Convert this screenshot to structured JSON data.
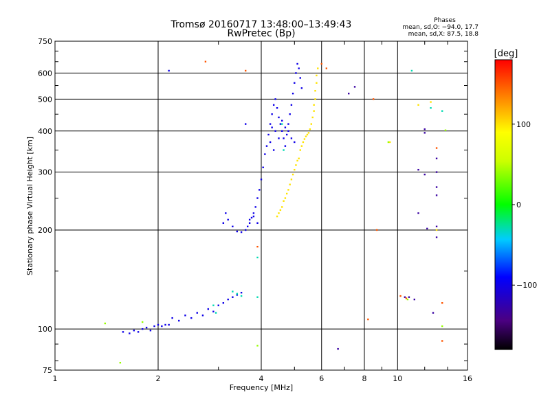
{
  "chart_data": {
    "type": "scatter",
    "title": "Tromsø 20160717 13:48:00–13:49:43",
    "subtitle": "RwPretec (Bp)",
    "xlabel": "Frequency [MHz]",
    "ylabel": "Stationary phase Virtual Height [km]",
    "x_scale": "log",
    "y_scale": "log",
    "xlim": [
      1,
      16
    ],
    "ylim": [
      75,
      750
    ],
    "x_ticks": [
      1,
      2,
      4,
      6,
      8,
      10,
      16
    ],
    "x_tick_labels": [
      "1",
      "2",
      "4",
      "6",
      "8",
      "10",
      "16"
    ],
    "y_ticks": [
      75,
      100,
      200,
      300,
      400,
      500,
      600,
      750
    ],
    "y_tick_labels": [
      "75",
      "100",
      "200",
      "300",
      "400",
      "500",
      "600",
      "750"
    ],
    "grid": true,
    "stats": {
      "header": "Phases",
      "o_line": "mean, sd,O: −94.0, 17.7",
      "x_line": "mean, sd,X:  87.5, 18.8"
    },
    "colorbar": {
      "label": "[deg]",
      "range": [
        -180,
        180
      ],
      "ticks": [
        100,
        0,
        -100
      ],
      "tick_labels": [
        "100",
        "0",
        "−100"
      ]
    },
    "series": [
      {
        "color_value": -100,
        "points": [
          [
            1.58,
            98
          ],
          [
            1.65,
            97
          ],
          [
            1.7,
            99
          ],
          [
            1.75,
            98
          ],
          [
            1.8,
            100
          ],
          [
            1.85,
            101
          ],
          [
            1.9,
            99
          ],
          [
            1.95,
            102
          ],
          [
            2.0,
            103
          ],
          [
            2.05,
            102
          ],
          [
            2.1,
            103
          ],
          [
            2.15,
            103
          ],
          [
            2.2,
            108
          ],
          [
            2.3,
            106
          ],
          [
            2.4,
            110
          ],
          [
            2.5,
            108
          ],
          [
            2.6,
            112
          ],
          [
            2.7,
            110
          ],
          [
            2.8,
            115
          ],
          [
            2.9,
            113
          ],
          [
            3.0,
            118
          ],
          [
            3.1,
            120
          ],
          [
            3.2,
            123
          ],
          [
            3.3,
            125
          ],
          [
            3.4,
            127
          ],
          [
            3.5,
            129
          ],
          [
            3.1,
            210
          ],
          [
            3.15,
            225
          ],
          [
            3.2,
            215
          ],
          [
            3.3,
            205
          ],
          [
            3.4,
            198
          ],
          [
            3.5,
            197
          ],
          [
            3.6,
            200
          ],
          [
            3.65,
            205
          ],
          [
            3.7,
            210
          ],
          [
            3.75,
            218
          ],
          [
            3.8,
            225
          ],
          [
            3.85,
            235
          ],
          [
            3.9,
            250
          ],
          [
            3.95,
            265
          ],
          [
            4.0,
            285
          ],
          [
            4.05,
            310
          ],
          [
            4.1,
            340
          ],
          [
            4.15,
            360
          ],
          [
            4.2,
            390
          ],
          [
            4.25,
            420
          ],
          [
            4.3,
            450
          ],
          [
            4.35,
            480
          ],
          [
            4.4,
            500
          ],
          [
            4.45,
            470
          ],
          [
            4.5,
            440
          ],
          [
            4.55,
            420
          ],
          [
            4.6,
            400
          ],
          [
            4.65,
            380
          ],
          [
            4.7,
            360
          ],
          [
            4.75,
            390
          ],
          [
            4.8,
            420
          ],
          [
            4.85,
            450
          ],
          [
            4.9,
            480
          ],
          [
            4.95,
            520
          ],
          [
            5.0,
            560
          ],
          [
            5.05,
            600
          ],
          [
            5.1,
            640
          ],
          [
            5.15,
            620
          ],
          [
            5.2,
            580
          ],
          [
            5.25,
            540
          ],
          [
            4.6,
            430
          ],
          [
            4.7,
            410
          ],
          [
            4.8,
            400
          ],
          [
            4.9,
            380
          ],
          [
            5.0,
            370
          ],
          [
            4.5,
            380
          ],
          [
            4.4,
            400
          ],
          [
            4.3,
            410
          ],
          [
            4.25,
            370
          ],
          [
            4.35,
            350
          ],
          [
            3.6,
            420
          ],
          [
            2.15,
            610
          ],
          [
            3.9,
            210
          ],
          [
            3.7,
            215
          ],
          [
            3.8,
            220
          ]
        ]
      },
      {
        "color_value": 100,
        "points": [
          [
            4.45,
            220
          ],
          [
            4.5,
            225
          ],
          [
            4.6,
            235
          ],
          [
            4.7,
            250
          ],
          [
            4.8,
            265
          ],
          [
            4.9,
            285
          ],
          [
            5.0,
            305
          ],
          [
            5.1,
            325
          ],
          [
            5.2,
            350
          ],
          [
            5.3,
            370
          ],
          [
            5.4,
            385
          ],
          [
            5.5,
            395
          ],
          [
            5.6,
            420
          ],
          [
            5.7,
            460
          ],
          [
            5.75,
            500
          ],
          [
            5.8,
            560
          ],
          [
            5.85,
            620
          ],
          [
            4.55,
            230
          ],
          [
            4.65,
            245
          ],
          [
            4.75,
            258
          ],
          [
            4.85,
            275
          ],
          [
            4.95,
            295
          ],
          [
            5.05,
            315
          ],
          [
            5.15,
            330
          ],
          [
            5.25,
            360
          ],
          [
            5.35,
            378
          ],
          [
            5.45,
            390
          ],
          [
            5.55,
            405
          ],
          [
            5.65,
            440
          ],
          [
            5.7,
            480
          ],
          [
            5.75,
            530
          ],
          [
            5.8,
            590
          ],
          [
            9.5,
            370
          ],
          [
            11.5,
            480
          ],
          [
            12.5,
            490
          ],
          [
            13.0,
            200
          ]
        ]
      },
      {
        "color_value": -30,
        "points": [
          [
            3.3,
            130
          ],
          [
            3.4,
            128
          ],
          [
            3.5,
            126
          ],
          [
            2.9,
            118
          ],
          [
            2.95,
            112
          ],
          [
            3.9,
            125
          ],
          [
            3.9,
            165
          ],
          [
            4.6,
            420
          ],
          [
            4.65,
            350
          ],
          [
            11.0,
            610
          ],
          [
            12.5,
            470
          ],
          [
            13.5,
            460
          ]
        ]
      },
      {
        "color_value": -130,
        "points": [
          [
            12.0,
            405
          ],
          [
            12.0,
            395
          ],
          [
            13.0,
            330
          ],
          [
            13.0,
            300
          ],
          [
            13.0,
            270
          ],
          [
            13.0,
            255
          ],
          [
            13.0,
            205
          ],
          [
            13.0,
            190
          ],
          [
            11.5,
            305
          ],
          [
            11.5,
            225
          ],
          [
            12.0,
            295
          ],
          [
            12.2,
            202
          ],
          [
            12.7,
            112
          ],
          [
            10.5,
            125
          ],
          [
            10.8,
            125
          ],
          [
            11.2,
            123
          ],
          [
            6.7,
            87
          ],
          [
            7.2,
            520
          ],
          [
            7.5,
            545
          ]
        ]
      },
      {
        "color_value": 150,
        "points": [
          [
            13.5,
            120
          ],
          [
            13.5,
            92
          ],
          [
            13.0,
            355
          ],
          [
            10.2,
            126
          ],
          [
            10.6,
            124
          ],
          [
            8.5,
            500
          ],
          [
            8.7,
            200
          ],
          [
            3.9,
            178
          ],
          [
            8.2,
            107
          ],
          [
            2.75,
            650
          ],
          [
            3.6,
            610
          ],
          [
            6.2,
            620
          ],
          [
            6.0,
            640
          ]
        ]
      },
      {
        "color_value": 40,
        "points": [
          [
            1.4,
            104
          ],
          [
            1.55,
            79
          ],
          [
            1.8,
            105
          ],
          [
            3.9,
            89
          ],
          [
            9.4,
            370
          ],
          [
            13.8,
            402
          ],
          [
            10.7,
            123
          ],
          [
            13.5,
            102
          ]
        ]
      }
    ]
  }
}
